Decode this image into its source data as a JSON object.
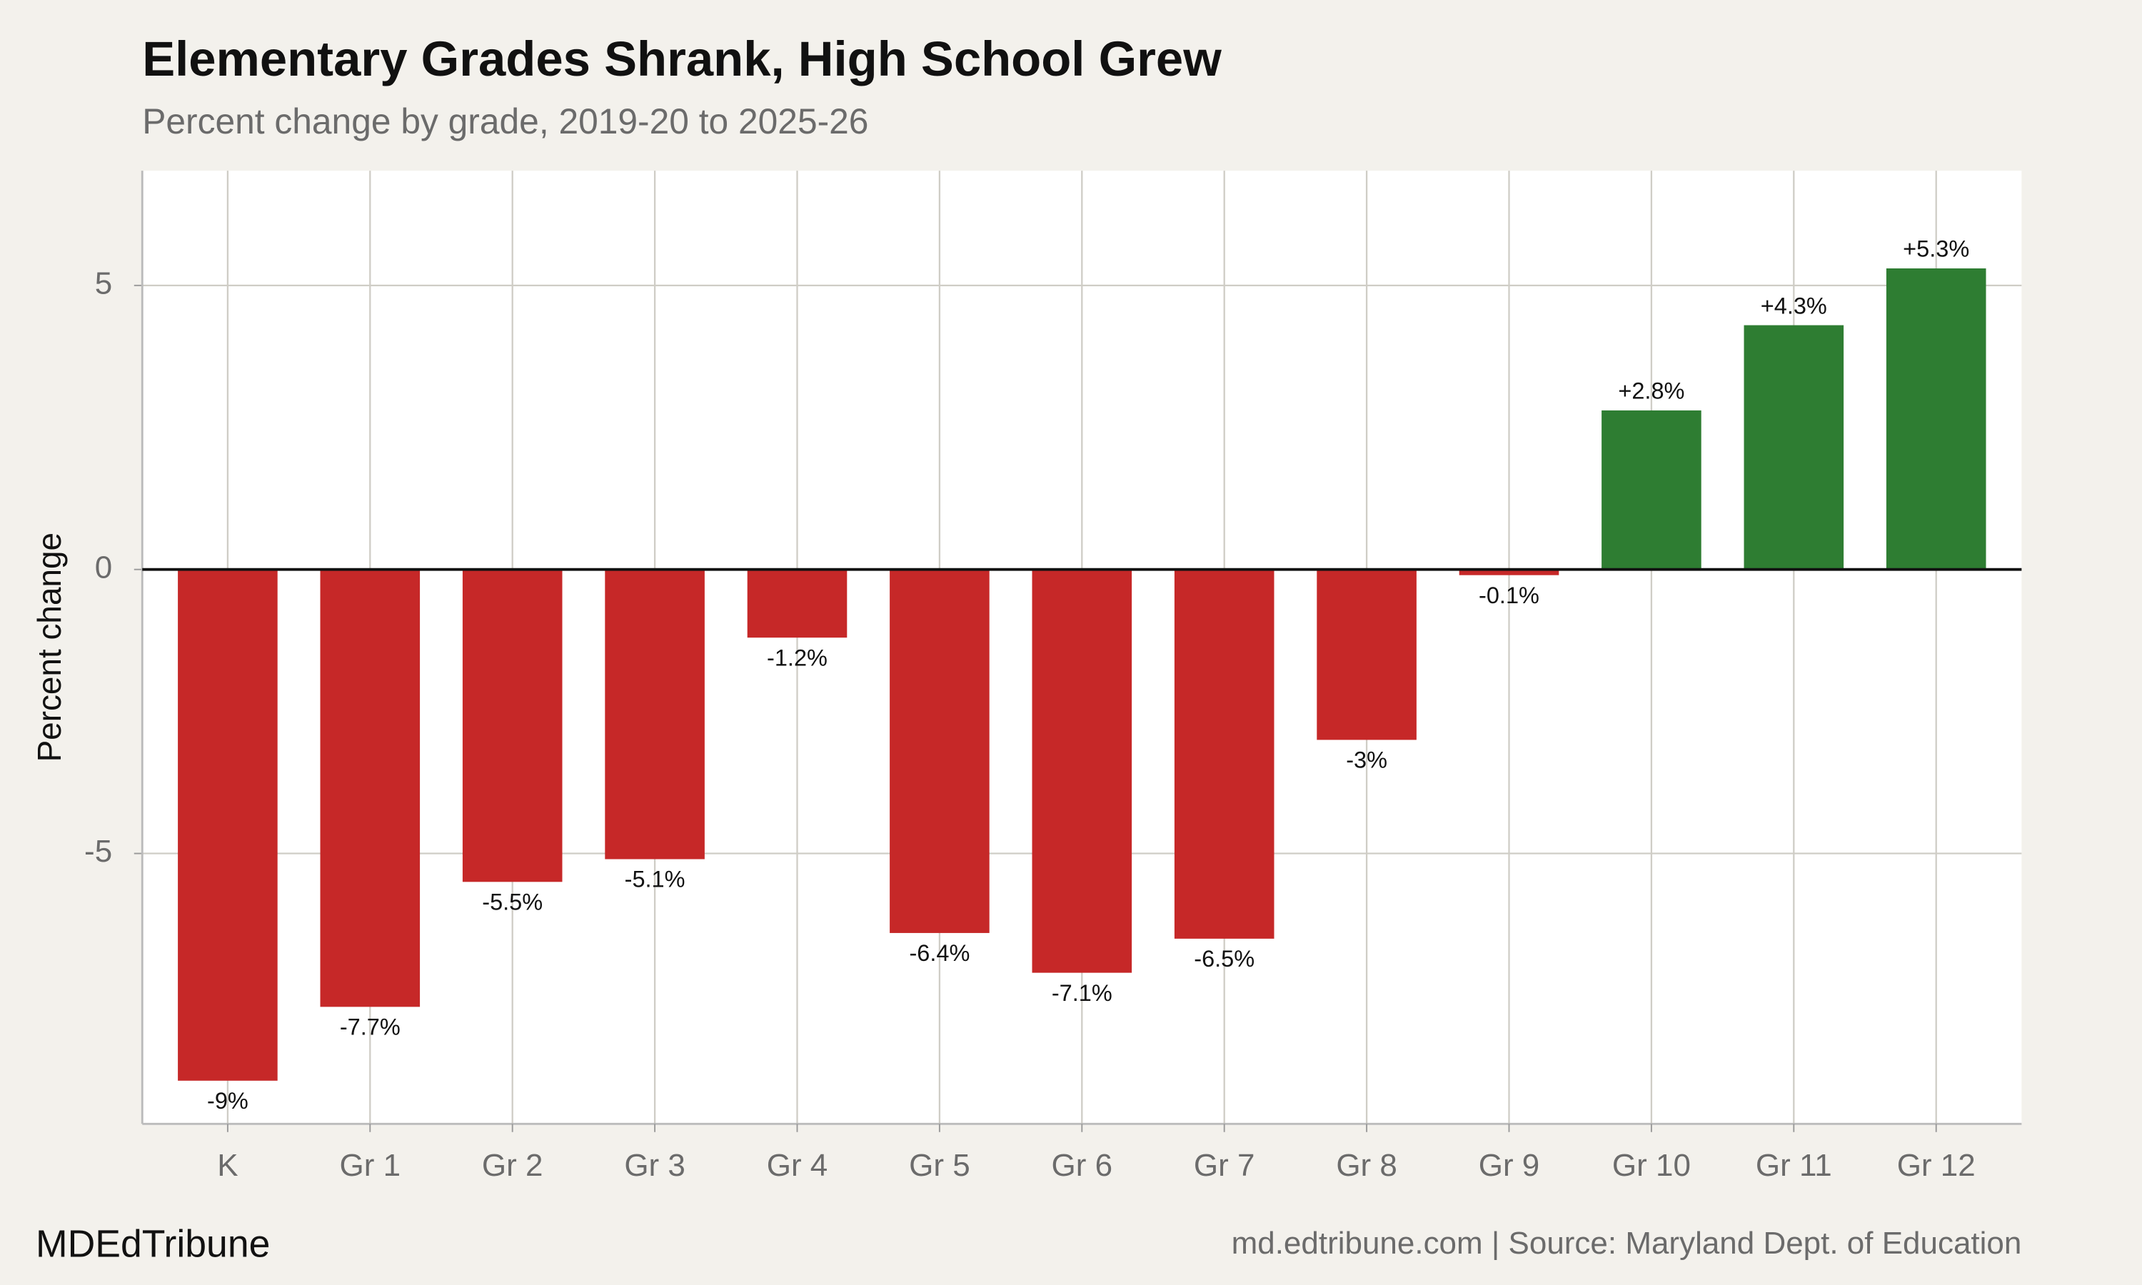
{
  "chart_data": {
    "type": "bar",
    "title": "Elementary Grades Shrank, High School Grew",
    "subtitle": "Percent change by grade, 2019-20 to 2025-26",
    "y_label": "Percent change",
    "categories": [
      "K",
      "Gr 1",
      "Gr 2",
      "Gr 3",
      "Gr 4",
      "Gr 5",
      "Gr 6",
      "Gr 7",
      "Gr 8",
      "Gr 9",
      "Gr 10",
      "Gr 11",
      "Gr 12"
    ],
    "values": [
      -9,
      -7.7,
      -5.5,
      -5.1,
      -1.2,
      -6.4,
      -7.1,
      -6.5,
      -3,
      -0.1,
      2.8,
      4.3,
      5.3
    ],
    "value_labels": [
      "-9%",
      "-7.7%",
      "-5.5%",
      "-5.1%",
      "-1.2%",
      "-6.4%",
      "-7.1%",
      "-6.5%",
      "-3%",
      "-0.1%",
      "+2.8%",
      "+4.3%",
      "+5.3%"
    ],
    "colors": [
      "#c62828",
      "#c62828",
      "#c62828",
      "#c62828",
      "#c62828",
      "#c62828",
      "#c62828",
      "#c62828",
      "#c62828",
      "#c62828",
      "#2e7d32",
      "#2e7d32",
      "#2e7d32"
    ],
    "ylim": [
      -9.76,
      7.02
    ],
    "yticks": [
      -5,
      0,
      5
    ],
    "grid": true,
    "footer_left": "MDEdTribune",
    "footer_right": "md.edtribune.com | Source: Maryland Dept. of Education"
  }
}
